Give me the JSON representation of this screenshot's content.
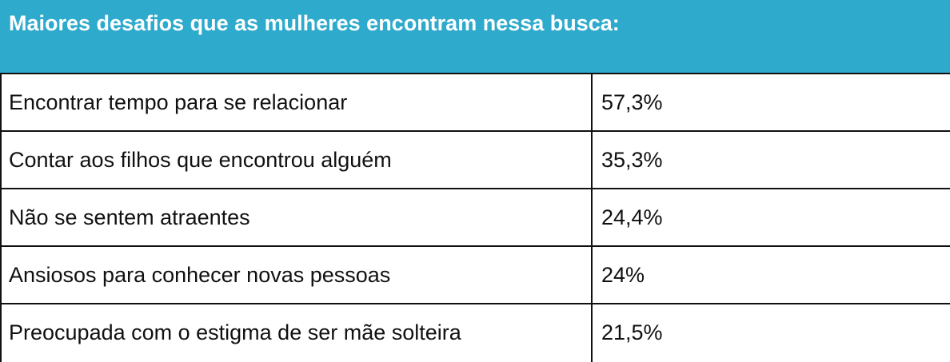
{
  "header": {
    "title": "Maiores desafios que as mulheres encontram nessa busca:"
  },
  "table": {
    "rows": [
      [
        "Encontrar tempo para se relacionar",
        "57,3%"
      ],
      [
        "Contar aos filhos que encontrou alguém",
        "35,3%"
      ],
      [
        "Não se sentem atraentes",
        "24,4%"
      ],
      [
        "Ansiosos para conhecer novas pessoas",
        "24%"
      ],
      [
        "Preocupada com o estigma de ser mãe solteira",
        "21,5%"
      ]
    ]
  }
}
